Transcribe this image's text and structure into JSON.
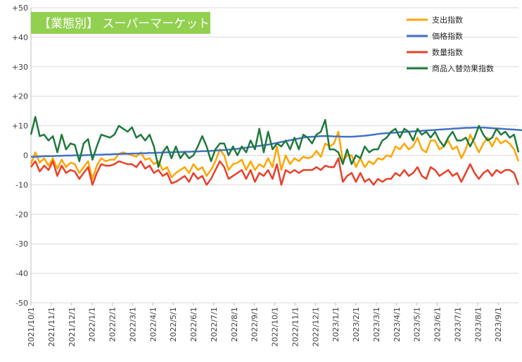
{
  "chart_data": {
    "type": "line",
    "title": "【業態別】 スーパーマーケット",
    "title_bg_color": "#92D050",
    "title_text_color": "#ffffff",
    "ylim": [
      -50,
      50
    ],
    "y_ticks": [
      50,
      40,
      30,
      20,
      10,
      0,
      -10,
      -20,
      -30,
      -40,
      -50
    ],
    "y_tick_labels": [
      "+50",
      "+40",
      "+30",
      "+20",
      "+10",
      "0",
      "-10",
      "-20",
      "-30",
      "-40",
      "-50"
    ],
    "x_tick_labels": [
      "2021/10/1",
      "2021/11/1",
      "2021/12/1",
      "2022/1/1",
      "2022/2/1",
      "2022/3/1",
      "2022/4/1",
      "2022/5/1",
      "2022/6/1",
      "2022/7/1",
      "2022/8/1",
      "2022/9/1",
      "2022/10/1",
      "2022/11/1",
      "2022/12/1",
      "2023/1/1",
      "2023/2/1",
      "2023/3/1",
      "2023/4/1",
      "2023/5/1",
      "2023/6/1",
      "2023/7/1",
      "2023/8/1",
      "2023/9/1"
    ],
    "grid": "horizontal",
    "legend_position": "top-right",
    "series": [
      {
        "name": "支出指数",
        "color": "#FFA500",
        "values": [
          -3,
          1,
          -2.5,
          -1,
          -3.5,
          -1,
          -4.5,
          -1.5,
          -4,
          -2.5,
          -3,
          -6,
          -4,
          -2,
          -8,
          -3.5,
          -1,
          -2,
          -1.5,
          -1.5,
          0.5,
          1,
          0.5,
          0,
          -0.5,
          1,
          -1.5,
          -1,
          -3,
          -2,
          -5,
          -4,
          -7.5,
          -6,
          -5,
          -4,
          -6,
          -3,
          -5,
          -4,
          -7,
          -5,
          -2,
          2,
          0,
          -5,
          -3,
          -2.5,
          -1.5,
          -5,
          -2,
          -5,
          -3,
          -4,
          -1,
          -4,
          3,
          -5,
          0,
          -3,
          -1,
          -2,
          -0.5,
          -1,
          -0.5,
          1.5,
          -0.5,
          4,
          3,
          4,
          8,
          -2,
          0,
          0,
          -4,
          -1,
          -4,
          -2,
          -3,
          -1,
          -1.5,
          0,
          -0.5,
          3,
          2,
          4,
          2,
          3,
          6,
          2,
          1,
          5,
          5,
          2,
          3,
          5,
          2,
          3,
          -1,
          2,
          7,
          4,
          1,
          4,
          6,
          3,
          6,
          4,
          5,
          4,
          2,
          -2
        ]
      },
      {
        "name": "価格指数",
        "color": "#4472C4",
        "values": [
          -0.5,
          -0.5,
          -0.4,
          -0.3,
          -0.3,
          -0.3,
          -0.2,
          -0.2,
          -0.1,
          -0.1,
          0,
          0,
          0,
          0.1,
          0.1,
          0.2,
          0.2,
          0.3,
          0.3,
          0.4,
          0.4,
          0.5,
          0.5,
          0.6,
          0.6,
          0.7,
          0.7,
          0.8,
          0.8,
          0.9,
          0.9,
          1,
          1,
          1.1,
          1.1,
          1.2,
          1.2,
          1.3,
          1.3,
          1.4,
          1.4,
          1.5,
          1.6,
          1.7,
          1.8,
          1.9,
          2,
          2.2,
          2.4,
          2.6,
          2.8,
          3,
          3.2,
          3.4,
          3.6,
          3.9,
          4.2,
          4.5,
          4.8,
          5.1,
          5.4,
          5.7,
          6,
          6.2,
          6.3,
          6.4,
          6.5,
          6.5,
          6.5,
          6.4,
          6.4,
          6.3,
          6.3,
          6.3,
          6.4,
          6.5,
          6.6,
          6.8,
          7,
          7.2,
          7.4,
          7.5,
          7.6,
          7.7,
          7.8,
          7.9,
          8,
          8.1,
          8.2,
          8.3,
          8.4,
          8.5,
          8.6,
          8.7,
          8.8,
          8.9,
          9,
          9.1,
          9.2,
          9.3,
          9.3,
          9.4,
          9.4,
          9.4,
          9.3,
          9.2,
          9.1,
          9,
          8.9,
          8.8,
          8.7,
          8.6,
          8.5,
          8.4
        ]
      },
      {
        "name": "数量指数",
        "color": "#E8402A",
        "values": [
          -4,
          -2,
          -5.5,
          -3.5,
          -5,
          -2,
          -7,
          -3.5,
          -6,
          -5,
          -5.5,
          -8,
          -6,
          -4,
          -10,
          -6,
          -3,
          -3.5,
          -3.5,
          -3,
          -2,
          -2.5,
          -3,
          -3,
          -4,
          -2,
          -4.5,
          -3.5,
          -6,
          -5,
          -7,
          -6,
          -9.5,
          -9,
          -8,
          -7,
          -9,
          -6,
          -8,
          -7,
          -10,
          -8,
          -5,
          -2,
          -4,
          -8,
          -7,
          -6,
          -5,
          -8,
          -5,
          -9,
          -6,
          -7,
          -5,
          -8,
          -3,
          -10,
          -5,
          -6,
          -5,
          -6,
          -5,
          -5,
          -5,
          -4,
          -5,
          -3.5,
          -4,
          -4,
          -1,
          -9,
          -7,
          -6,
          -9,
          -6,
          -9,
          -8,
          -10,
          -8,
          -9,
          -8,
          -8,
          -6,
          -7,
          -5,
          -7,
          -6,
          -4,
          -7,
          -8,
          -4,
          -5,
          -7,
          -6,
          -5,
          -7,
          -6,
          -9,
          -6,
          -3,
          -6,
          -8,
          -6,
          -5,
          -7,
          -5,
          -6,
          -5,
          -5,
          -6,
          -10
        ]
      },
      {
        "name": "商品入替効果指数",
        "color": "#1E7A3C",
        "values": [
          7,
          13,
          6.5,
          7,
          5,
          6.5,
          1,
          7,
          2,
          4,
          3.5,
          -2,
          4,
          5.5,
          -1.5,
          3,
          7,
          6.5,
          6,
          7,
          10,
          9,
          8,
          9.5,
          6,
          7,
          5,
          7,
          3,
          -4,
          1,
          3,
          -1,
          3,
          -1,
          1,
          -1,
          0,
          3,
          6.5,
          3,
          -2,
          2,
          4,
          4,
          0,
          3,
          0,
          3,
          1,
          5,
          2,
          9,
          1,
          8,
          2,
          4,
          3,
          5,
          2,
          6,
          2,
          7,
          6,
          4,
          7,
          8,
          12,
          2,
          2,
          1,
          -3,
          2,
          -3,
          0,
          -1,
          3,
          1,
          2,
          2,
          5,
          6,
          8,
          9,
          6,
          9,
          8,
          5,
          9,
          7,
          8,
          6,
          8,
          5,
          3,
          6,
          8,
          5,
          5,
          6,
          3,
          6,
          10,
          7,
          5,
          6,
          9,
          7,
          8,
          6,
          7,
          1
        ]
      }
    ]
  }
}
